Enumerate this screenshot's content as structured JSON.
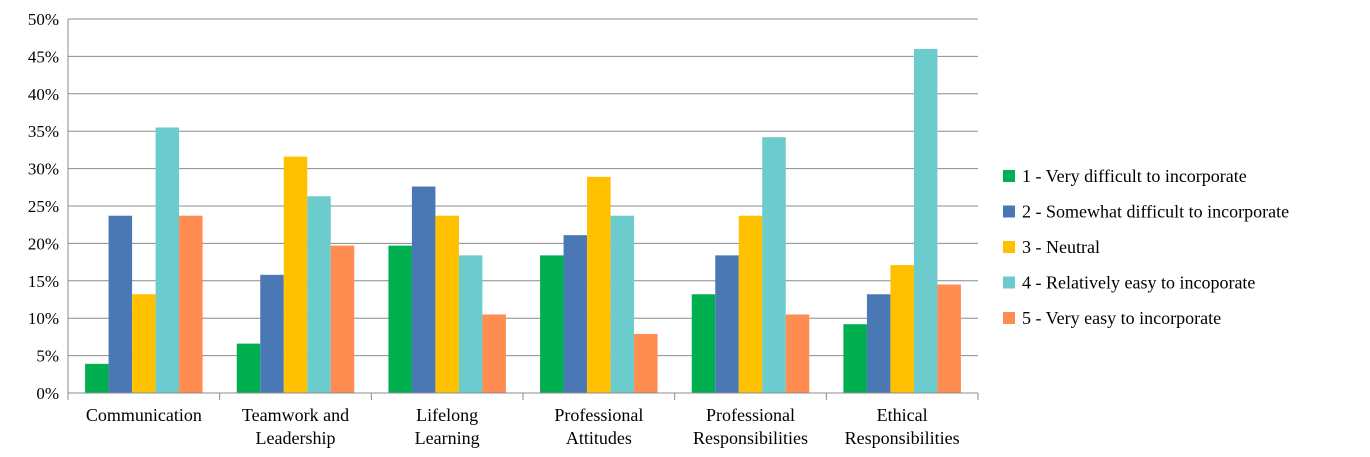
{
  "chart_data": {
    "type": "bar",
    "categories": [
      [
        "Communication"
      ],
      [
        "Teamwork and",
        "Leadership"
      ],
      [
        "Lifelong",
        "Learning"
      ],
      [
        "Professional",
        "Attitudes"
      ],
      [
        "Professional",
        "Responsibilities"
      ],
      [
        "Ethical",
        "Responsibilities"
      ]
    ],
    "series": [
      {
        "name": "1 - Very difficult to incorporate",
        "color": "#00b050",
        "values": [
          3.9,
          6.6,
          19.7,
          18.4,
          13.2,
          9.2
        ]
      },
      {
        "name": "2 - Somewhat difficult to incorporate",
        "color": "#4a78b4",
        "values": [
          23.7,
          15.8,
          27.6,
          21.1,
          18.4,
          13.2
        ]
      },
      {
        "name": "3 - Neutral",
        "color": "#ffc000",
        "values": [
          13.2,
          31.6,
          23.7,
          28.9,
          23.7,
          17.1
        ]
      },
      {
        "name": "4 - Relatively easy to incoporate",
        "color": "#6ccbcc",
        "values": [
          35.5,
          26.3,
          18.4,
          23.7,
          34.2,
          46.0
        ]
      },
      {
        "name": "5 - Very easy to incorporate",
        "color": "#ff8c50",
        "values": [
          23.7,
          19.7,
          10.5,
          7.9,
          10.5,
          14.5
        ]
      }
    ],
    "yticks": [
      "0%",
      "5%",
      "10%",
      "15%",
      "20%",
      "25%",
      "30%",
      "35%",
      "40%",
      "45%",
      "50%"
    ],
    "ylim": [
      0,
      50
    ],
    "grid": true,
    "legend_position": "right"
  }
}
